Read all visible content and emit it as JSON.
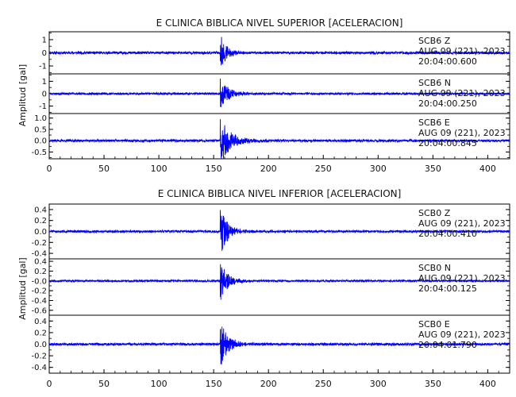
{
  "colors": {
    "trace": "#0000ff",
    "axis": "#000000",
    "text": "#111111"
  },
  "chart_data": [
    {
      "type": "line",
      "title": "E CLINICA BIBLICA NIVEL SUPERIOR [ACELERACION]",
      "ylabel": "Amplitud [gal]",
      "xlabel": "",
      "xlim": [
        0,
        420
      ],
      "x_ticks": [
        0,
        50,
        100,
        150,
        200,
        250,
        300,
        350,
        400
      ],
      "grid": false,
      "panels": [
        {
          "station": "SCB6   Z",
          "date": "AUG 09 (221), 2023",
          "time": "20:04:00.600",
          "ylim": [
            -1.6,
            1.6
          ],
          "y_ticks": [
            -1,
            0,
            1
          ],
          "y_tick_labels": [
            "-1",
            "0",
            "1"
          ],
          "noise_amp": 0.09,
          "event_onset": 156,
          "event_peak": 1.35,
          "event_decay": 5,
          "seed": 11
        },
        {
          "station": "SCB6   N",
          "date": "AUG 09 (221), 2023",
          "time": "20:04:00.250",
          "ylim": [
            -1.6,
            1.6
          ],
          "y_ticks": [
            -1,
            0,
            1
          ],
          "y_tick_labels": [
            "-1",
            "0",
            "1"
          ],
          "noise_amp": 0.08,
          "event_onset": 156,
          "event_peak": 1.2,
          "event_decay": 7,
          "seed": 23
        },
        {
          "station": "SCB6   E",
          "date": "AUG 09 (221), 2023",
          "time": "20:04:00.845",
          "ylim": [
            -0.8,
            1.2
          ],
          "y_ticks": [
            -0.5,
            0,
            0.5,
            1.0
          ],
          "y_tick_labels": [
            "-0.5",
            "0.0",
            "0.5",
            "1.0"
          ],
          "noise_amp": 0.05,
          "event_onset": 156,
          "event_peak": 1.05,
          "event_decay": 9,
          "seed": 37
        }
      ]
    },
    {
      "type": "line",
      "title": "E CLINICA BIBLICA NIVEL INFERIOR [ACELERACION]",
      "ylabel": "Amplitud [gal]",
      "xlabel": "",
      "xlim": [
        0,
        420
      ],
      "x_ticks": [
        0,
        50,
        100,
        150,
        200,
        250,
        300,
        350,
        400
      ],
      "grid": false,
      "panels": [
        {
          "station": "SCB0   Z",
          "date": "AUG 09 (221), 2023",
          "time": "20:04:00.410",
          "ylim": [
            -0.5,
            0.5
          ],
          "y_ticks": [
            -0.4,
            -0.2,
            0,
            0.2,
            0.4
          ],
          "y_tick_labels": [
            "-0.4",
            "-0.2",
            "0.0",
            "0.2",
            "0.4"
          ],
          "noise_amp": 0.02,
          "event_onset": 156,
          "event_peak": 0.48,
          "event_decay": 6,
          "seed": 51
        },
        {
          "station": "SCB0   N",
          "date": "AUG 09 (221), 2023",
          "time": "20:04:00.125",
          "ylim": [
            -0.7,
            0.45
          ],
          "y_ticks": [
            -0.6,
            -0.4,
            -0.2,
            0,
            0.2,
            0.4
          ],
          "y_tick_labels": [
            "-0.6",
            "-0.4",
            "-0.2",
            "-0.0",
            "0.2",
            "0.4"
          ],
          "noise_amp": 0.018,
          "event_onset": 156,
          "event_peak": 0.42,
          "event_decay": 6,
          "seed": 67
        },
        {
          "station": "SCB0   E",
          "date": "AUG 09 (221), 2023",
          "time": "20:04:01.790",
          "ylim": [
            -0.5,
            0.5
          ],
          "y_ticks": [
            -0.4,
            -0.2,
            0,
            0.2,
            0.4
          ],
          "y_tick_labels": [
            "-0.4",
            "-0.2",
            "0.0",
            "0.2",
            "0.4"
          ],
          "noise_amp": 0.02,
          "event_onset": 156,
          "event_peak": 0.45,
          "event_decay": 6,
          "seed": 79
        }
      ]
    }
  ]
}
